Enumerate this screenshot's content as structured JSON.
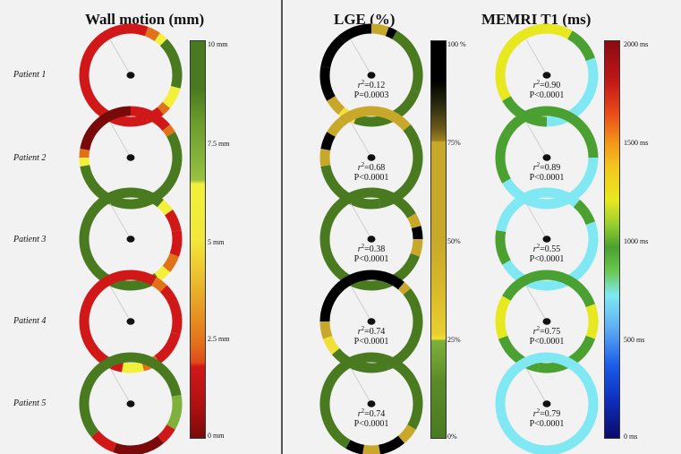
{
  "headers": {
    "wall_motion": "Wall motion (mm)",
    "lge": "LGE (%)",
    "memri": "MEMRI T1 (ms)"
  },
  "patients": [
    "Patient 1",
    "Patient 2",
    "Patient 3",
    "Patient 4",
    "Patient 5"
  ],
  "colorbars": {
    "wall_motion": {
      "ticks": [
        "10 mm",
        "7.5 mm",
        "5 mm",
        "2.5 mm",
        "0 mm"
      ],
      "colors": {
        "green_dark": "#4a7a20",
        "green_light": "#7fb03a",
        "yellow": "#f2f03a",
        "orange": "#e2721a",
        "red": "#d01818",
        "darkred": "#7a0a0a"
      }
    },
    "lge": {
      "ticks": [
        "100 %",
        "75%",
        "50%",
        "25%",
        "0%"
      ],
      "colors": {
        "black": "#000000",
        "gold": "#c8a82a",
        "yellow": "#f2e03a",
        "green": "#4a7a20"
      }
    },
    "memri": {
      "ticks": [
        "2000 ms",
        "1500 ms",
        "1000 ms",
        "500 ms",
        "0 ms"
      ],
      "colors": {
        "darkred": "#8a0a12",
        "red": "#e21a1a",
        "orange": "#f29a1a",
        "yellow": "#e8e820",
        "green": "#4aa030",
        "cyan": "#80e8f2",
        "blue": "#1a5ae8",
        "navy": "#0a0a6a"
      }
    }
  },
  "stats": [
    {
      "r2": "0.12",
      "p": "P=0.0003"
    },
    {
      "r2": "0.68",
      "p": "P<0.0001"
    },
    {
      "r2": "0.38",
      "p": "P<0.0001"
    },
    {
      "r2": "0.74",
      "p": "P<0.0001"
    },
    {
      "r2": "0.74",
      "p": "P<0.0001"
    }
  ],
  "memri_stats": [
    {
      "r2": "0.90",
      "p": "P<0.0001"
    },
    {
      "r2": "0.89",
      "p": "P<0.0001"
    },
    {
      "r2": "0.55",
      "p": "P<0.0001"
    },
    {
      "r2": "0.75",
      "p": "P<0.0001"
    },
    {
      "r2": "0.79",
      "p": "P<0.0001"
    }
  ],
  "r2_prefix": "r",
  "r2_sup": "2",
  "r2_eq": "="
}
